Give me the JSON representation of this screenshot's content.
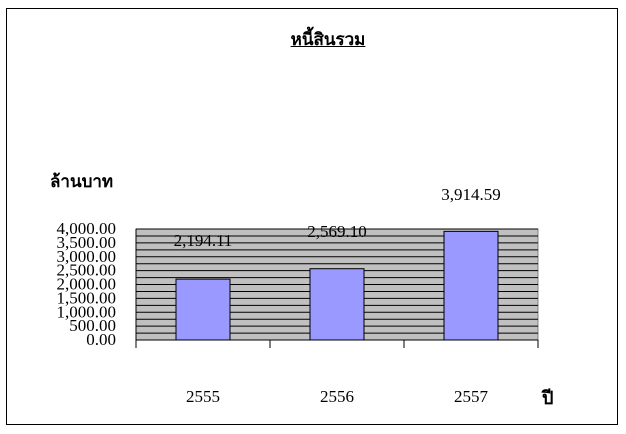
{
  "chart_data": {
    "type": "bar",
    "title": "หนี้สินรวม",
    "ylabel": "ล้านบาท",
    "xlabel": "ปี",
    "categories": [
      "2555",
      "2556",
      "2557"
    ],
    "values": [
      2194.11,
      2569.1,
      3914.59
    ],
    "data_labels": [
      "2,194.11",
      "2,569.10",
      "3,914.59"
    ],
    "ylim": [
      0,
      4000
    ],
    "y_ticks": [
      "0.00",
      "500.00",
      "1,000.00",
      "1,500.00",
      "2,000.00",
      "2,500.00",
      "3,000.00",
      "3,500.00",
      "4,000.00"
    ],
    "y_tick_values": [
      0,
      500,
      1000,
      1500,
      2000,
      2500,
      3000,
      3500,
      4000
    ],
    "grid": true,
    "colors": {
      "plot_bg": "#c0c0c0",
      "bar": "#9999ff",
      "bar_border": "#000000",
      "grid": "#000000"
    }
  }
}
